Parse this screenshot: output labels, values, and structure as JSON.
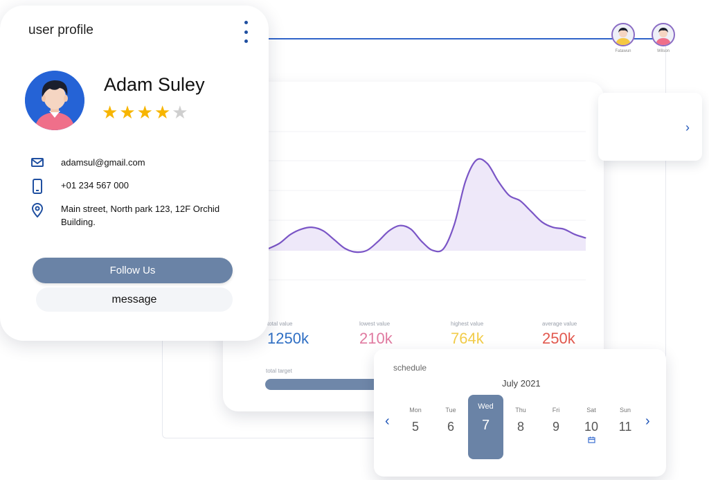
{
  "profile": {
    "title": "user profile",
    "name": "Adam Suley",
    "rating": 4,
    "rating_max": 5,
    "email": "adamsul@gmail.com",
    "phone": "+01 234 567 000",
    "address": "Main street, North park 123, 12F Orchid Building.",
    "follow_label": "Follow Us",
    "message_label": "message",
    "icons": [
      "kebab-menu-icon",
      "mail-icon",
      "phone-icon",
      "location-pin-icon"
    ]
  },
  "people": {
    "items": [
      {
        "name": "Fatawun"
      },
      {
        "name": "Wilson"
      }
    ],
    "icons": [
      "chevron-right-icon"
    ]
  },
  "analytics": {
    "axis_glyph": "I",
    "stats": [
      {
        "label": "total value",
        "value": "1250k",
        "color": "#2f6fc4"
      },
      {
        "label": "lowest value",
        "value": "210k",
        "color": "#e07aa0"
      },
      {
        "label": "highest value",
        "value": "764k",
        "color": "#f2cc4a"
      },
      {
        "label": "average value",
        "value": "250k",
        "color": "#e2584e"
      }
    ],
    "target_label": "total target",
    "colors": {
      "line": "#7a55c6",
      "area": "#ece6f8",
      "target_bar": "#6f87a9"
    }
  },
  "schedule": {
    "title": "schedule",
    "month": "July 2021",
    "days": [
      {
        "name": "Mon",
        "num": "5"
      },
      {
        "name": "Tue",
        "num": "6"
      },
      {
        "name": "Wed",
        "num": "7",
        "selected": true
      },
      {
        "name": "Thu",
        "num": "8"
      },
      {
        "name": "Fri",
        "num": "9"
      },
      {
        "name": "Sat",
        "num": "10",
        "event_icon": "calendar-icon"
      },
      {
        "name": "Sun",
        "num": "11"
      }
    ],
    "prev_icon": "chevron-left-icon",
    "next_icon": "chevron-right-icon",
    "accent": "#6a83a6"
  },
  "chart_data": {
    "type": "area",
    "title": "",
    "xlabel": "",
    "ylabel": "",
    "grid": true,
    "x": [
      1,
      2,
      3,
      4,
      5,
      6,
      7,
      8,
      9,
      10,
      11,
      12,
      13,
      14,
      15,
      16,
      17,
      18,
      19,
      20,
      21,
      22,
      23,
      24,
      25,
      26,
      27,
      28,
      29,
      30
    ],
    "series": [
      {
        "values": [
          20,
          23,
          28,
          31,
          32,
          30,
          25,
          20,
          18,
          19,
          24,
          30,
          33,
          31,
          24,
          19,
          20,
          34,
          58,
          70,
          68,
          58,
          50,
          47,
          41,
          35,
          32,
          31,
          28,
          26
        ]
      }
    ]
  }
}
